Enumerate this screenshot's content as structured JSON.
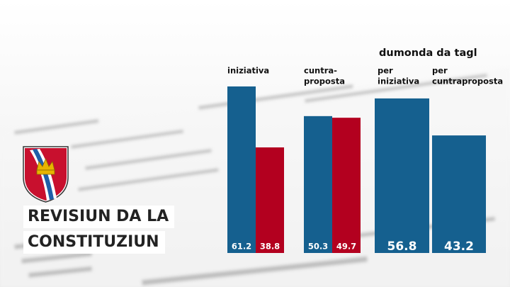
{
  "chart_data": {
    "type": "bar",
    "annotation": "dumonda da tagl",
    "groups": [
      {
        "name": [
          "iniziativa"
        ],
        "values": [
          61.2,
          38.8
        ],
        "colors": [
          "#15608f",
          "#b3001f"
        ]
      },
      {
        "name": [
          "cuntra-",
          "proposta"
        ],
        "values": [
          50.3,
          49.7
        ],
        "colors": [
          "#15608f",
          "#b3001f"
        ]
      },
      {
        "name": [
          "per",
          "iniziativa"
        ],
        "values": [
          56.8
        ],
        "colors": [
          "#15608f"
        ]
      },
      {
        "name": [
          "per",
          "cuntraproposta"
        ],
        "values": [
          43.2
        ],
        "colors": [
          "#15608f"
        ]
      }
    ]
  },
  "banner": [
    "REVISIUN DA LA",
    "CONSTITUZIUN"
  ]
}
